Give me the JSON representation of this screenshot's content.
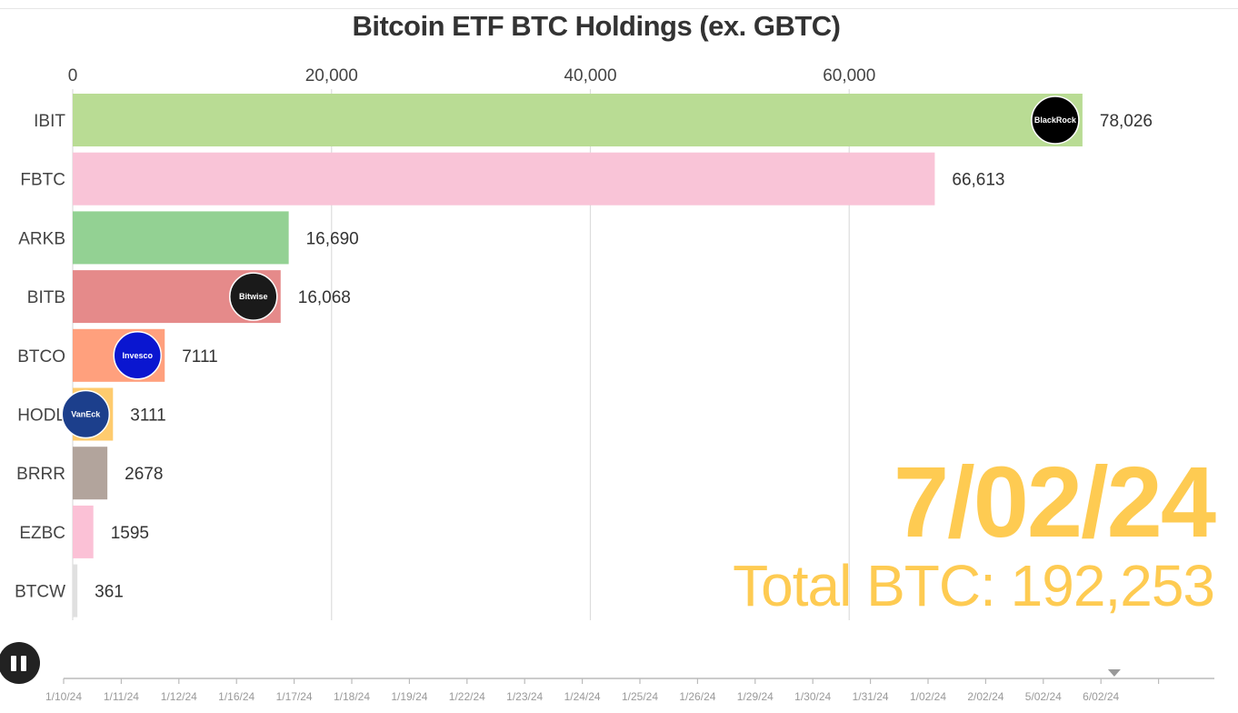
{
  "chart_data": {
    "type": "bar",
    "orientation": "horizontal",
    "title": "Bitcoin ETF BTC Holdings (ex. GBTC)",
    "categories": [
      "IBIT",
      "FBTC",
      "ARKB",
      "BITB",
      "BTCO",
      "HODL",
      "BRRR",
      "EZBC",
      "BTCW"
    ],
    "values": [
      78026,
      66613,
      16690,
      16068,
      7111,
      3111,
      2678,
      1595,
      361
    ],
    "value_labels": [
      "78,026",
      "66,613",
      "16,690",
      "16,068",
      "7111",
      "3111",
      "2678",
      "1595",
      "361"
    ],
    "colors": [
      "#b9dc94",
      "#f9c4d7",
      "#93d193",
      "#e58a8a",
      "#ffa07d",
      "#fecb6e",
      "#b2a49c",
      "#fbc1d6",
      "#e0e0e0"
    ],
    "logos": [
      "BlackRock",
      "",
      "",
      "Bitwise",
      "Invesco",
      "VanEck",
      "",
      "",
      ""
    ],
    "xlim": [
      0,
      80000
    ],
    "x_ticks": [
      0,
      20000,
      40000,
      60000
    ],
    "x_tick_labels": [
      "0",
      "20,000",
      "40,000",
      "60,000"
    ],
    "grid": true,
    "current_date": "7/02/24",
    "total_label": "Total BTC: 192,253"
  },
  "timeline": {
    "dates": [
      "1/10/24",
      "1/11/24",
      "1/12/24",
      "1/16/24",
      "1/17/24",
      "1/18/24",
      "1/19/24",
      "1/22/24",
      "1/23/24",
      "1/24/24",
      "1/25/24",
      "1/26/24",
      "1/29/24",
      "1/30/24",
      "1/31/24",
      "1/02/24",
      "2/02/24",
      "5/02/24",
      "6/02/24"
    ],
    "current_marker_index": 18.5
  },
  "controls": {
    "pause_icon": "pause-icon"
  }
}
